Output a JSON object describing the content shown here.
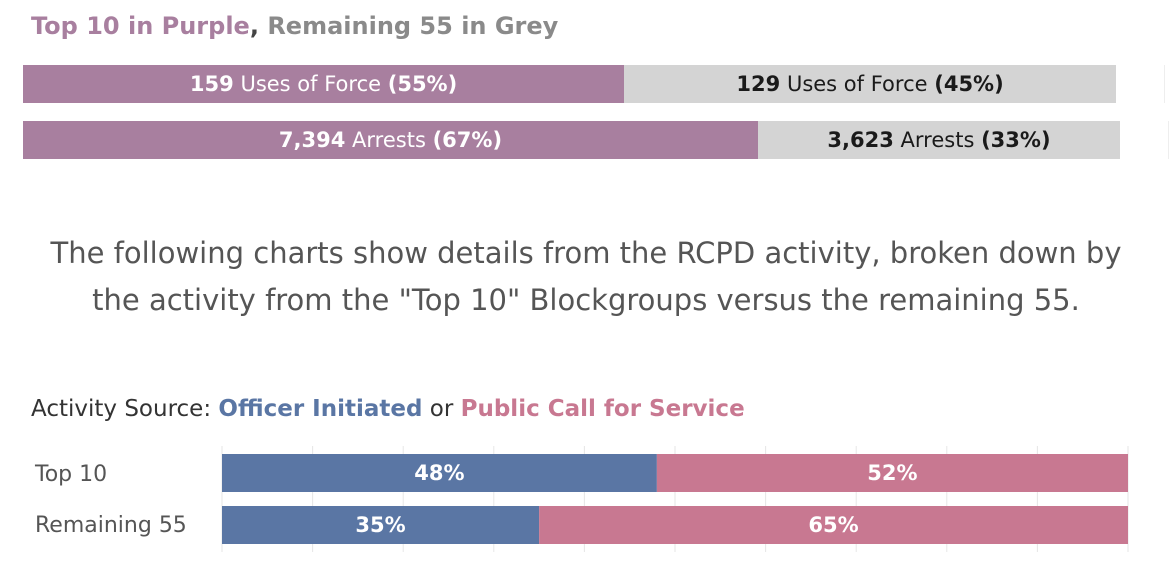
{
  "header": {
    "top_label": "Top 10 in Purple",
    "separator": ",",
    "rest_label": "Remaining 55 in Grey"
  },
  "summary_bars": [
    {
      "top": {
        "count": "159",
        "text": "Uses of Force",
        "pct": "(55%)",
        "value": 55
      },
      "rest": {
        "count": "129",
        "text": "Uses of Force",
        "pct": "(45%)",
        "value": 45
      }
    },
    {
      "top": {
        "count": "7,394",
        "text": "Arrests",
        "pct": "(67%)",
        "value": 67
      },
      "rest": {
        "count": "3,623",
        "text": "Arrests",
        "pct": "(33%)",
        "value": 33
      }
    }
  ],
  "paragraph": {
    "line1": "The following charts show details from the RCPD activity, broken down by",
    "line2": "the activity from the \"Top 10\" Blockgroups versus the remaining 55."
  },
  "activity_title": {
    "prefix": "Activity Source:",
    "officer": "Officer Initiated",
    "or": "or",
    "public": "Public Call for Service"
  },
  "colors": {
    "top10": "#a87f9f",
    "remaining": "#d4d4d4",
    "officer": "#5a76a4",
    "public": "#c87891"
  },
  "chart_data": {
    "type": "bar",
    "orientation": "horizontal",
    "stacked": true,
    "normalized": true,
    "categories": [
      "Top 10",
      "Remaining 55"
    ],
    "series": [
      {
        "name": "Officer Initiated",
        "values": [
          48,
          35
        ],
        "labels": [
          "48%",
          "35%"
        ]
      },
      {
        "name": "Public Call for Service",
        "values": [
          52,
          65
        ],
        "labels": [
          "52%",
          "65%"
        ]
      }
    ],
    "xlim": [
      0,
      100
    ],
    "grid": true
  }
}
